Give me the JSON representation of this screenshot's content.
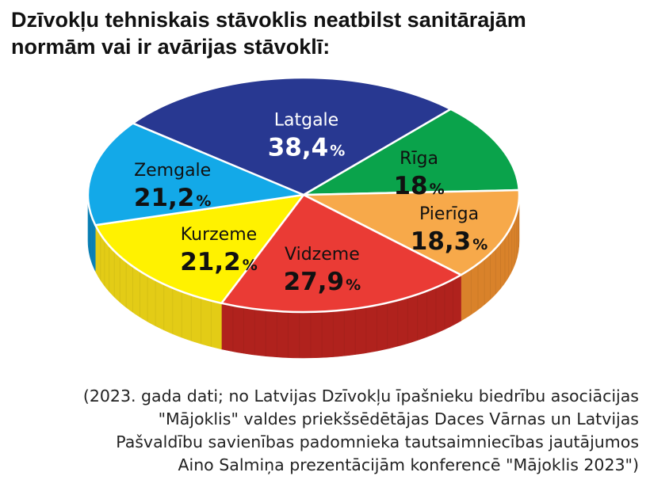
{
  "title": {
    "line1": "Dzīvokļu tehniskais stāvoklis neatbilst sanitārajām",
    "line2": "normām vai ir avārijas stāvoklī:"
  },
  "chart_data": {
    "type": "pie",
    "slices": [
      {
        "label": "Rīga",
        "value": 18,
        "value_text": "18",
        "unit": "%",
        "color": "#0aa34b",
        "side": "#067a37",
        "text_color": "#111111"
      },
      {
        "label": "Pierīga",
        "value": 18.3,
        "value_text": "18,3",
        "unit": "%",
        "color": "#f7a94a",
        "side": "#d9822a",
        "text_color": "#111111"
      },
      {
        "label": "Vidzeme",
        "value": 27.9,
        "value_text": "27,9",
        "unit": "%",
        "color": "#ea3b35",
        "side": "#b0221d",
        "text_color": "#111111"
      },
      {
        "label": "Kurzeme",
        "value": 21.2,
        "value_text": "21,2",
        "unit": "%",
        "color": "#fff200",
        "side": "#e3cc16",
        "text_color": "#111111"
      },
      {
        "label": "Zemgale",
        "value": 21.2,
        "value_text": "21,2",
        "unit": "%",
        "color": "#13a9e8",
        "side": "#0b82b8",
        "text_color": "#111111"
      },
      {
        "label": "Latgale",
        "value": 38.4,
        "value_text": "38,4",
        "unit": "%",
        "color": "#283891",
        "side": "#1b2566",
        "text_color": "#ffffff"
      }
    ]
  },
  "caption": {
    "line1": "(2023. gada dati; no Latvijas Dzīvokļu īpašnieku biedrību asociācijas",
    "line2": "\"Mājoklis\" valdes priekšsēdētājas Daces Vārnas un Latvijas",
    "line3": "Pašvaldību savienības padomnieka tautsaimniecības jautājumos",
    "line4": "Aino Salmiņa prezentācijām konferencē \"Mājoklis 2023\")"
  }
}
